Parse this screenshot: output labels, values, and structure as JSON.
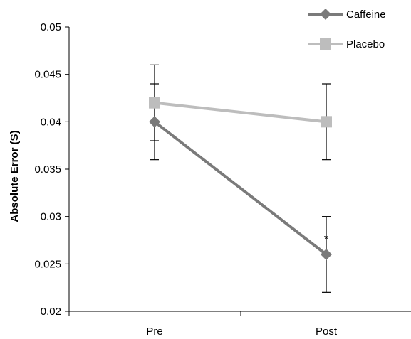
{
  "chart_data": {
    "type": "line",
    "title": "",
    "xlabel": "",
    "ylabel": "Absolute Error (S)",
    "categories": [
      "Pre",
      "Post"
    ],
    "ylim": [
      0.02,
      0.05
    ],
    "yticks": [
      "0.02",
      "0.025",
      "0.03",
      "0.035",
      "0.04",
      "0.045",
      "0.05"
    ],
    "grid": false,
    "legend_position": "top-right",
    "series": [
      {
        "name": "Caffeine",
        "values": [
          0.04,
          0.026
        ],
        "error": [
          0.004,
          0.004
        ],
        "marker": "diamond",
        "color": "#7a7a7a"
      },
      {
        "name": "Placebo",
        "values": [
          0.042,
          0.04
        ],
        "error": [
          0.004,
          0.004
        ],
        "marker": "square",
        "color": "#bdbdbd"
      }
    ],
    "annotations": [
      {
        "text": "*",
        "series": "Caffeine",
        "category": "Post"
      }
    ]
  }
}
